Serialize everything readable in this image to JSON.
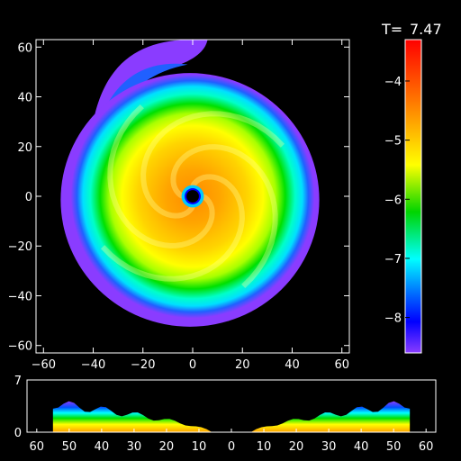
{
  "chart_data": [
    {
      "type": "heatmap",
      "panel": "face-on",
      "title": "",
      "xlabel": "",
      "ylabel": "",
      "xlim": [
        -63,
        63
      ],
      "ylim": [
        -63,
        63
      ],
      "x_ticks": [
        -60,
        -40,
        -20,
        0,
        20,
        40,
        60
      ],
      "y_ticks": [
        -60,
        -40,
        -20,
        0,
        20,
        40,
        60
      ],
      "x_tick_labels": [
        "−60",
        "−40",
        "−20",
        "0",
        "20",
        "40",
        "60"
      ],
      "y_tick_labels": [
        "−60",
        "−40",
        "−20",
        "0",
        "20",
        "40",
        "60"
      ],
      "grid": false,
      "disk": {
        "outer_radius": 50,
        "inner_hole_radius": 2.5,
        "center": [
          0,
          0
        ],
        "core_value": -5.0,
        "edge_value": -8.3,
        "spiral_tail": "upper-left, extends to y = 63"
      }
    },
    {
      "type": "heatmap",
      "panel": "edge-on",
      "xlim": [
        -63,
        63
      ],
      "ylim": [
        0,
        7
      ],
      "x_ticks": [
        -60,
        -50,
        -40,
        -30,
        -20,
        -10,
        0,
        10,
        20,
        30,
        40,
        50,
        60
      ],
      "x_tick_labels": [
        "60",
        "50",
        "40",
        "30",
        "20",
        "10",
        "0",
        "10",
        "20",
        "30",
        "40",
        "50",
        "60"
      ],
      "y_ticks": [
        0,
        7
      ],
      "y_tick_labels": [
        "0",
        "7"
      ],
      "profile": {
        "outer_radius": 55,
        "inner_gap_radius": 6,
        "max_height": 4.5
      }
    }
  ],
  "colorbar": {
    "label": "T=",
    "value": "7.47",
    "range": [
      -8.6,
      -3.3
    ],
    "ticks": [
      -4,
      -5,
      -6,
      -7,
      -8
    ],
    "tick_labels": [
      "−4",
      "−5",
      "−6",
      "−7",
      "−8"
    ],
    "colors": [
      "#ff0000",
      "#ff7a00",
      "#ffff00",
      "#00d400",
      "#00ffff",
      "#0060ff",
      "#0000ff",
      "#8a3cff"
    ]
  }
}
